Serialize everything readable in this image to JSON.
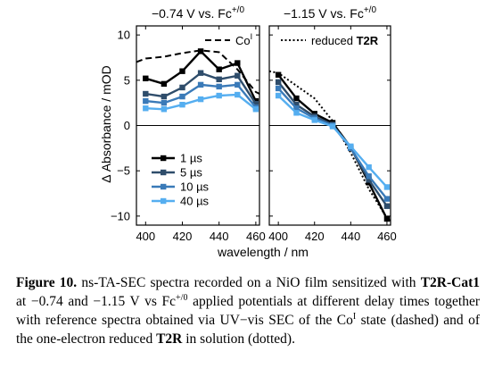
{
  "chart_data": [
    {
      "type": "line",
      "title_parts": [
        "−0.74 V vs. Fc",
        "+/0"
      ],
      "xlabel": "wavelength / nm",
      "ylabel": "Δ Absorbance / mOD",
      "xlim": [
        395,
        462
      ],
      "ylim": [
        -11,
        11
      ],
      "xticks": [
        400,
        420,
        440,
        460
      ],
      "yticks": [
        10,
        5,
        0,
        -5,
        -10
      ],
      "zero_line": true,
      "legend": [
        {
          "label": "1 µs",
          "color": "#000000"
        },
        {
          "label": "5 µs",
          "color": "#2f4d6b"
        },
        {
          "label": "10 µs",
          "color": "#3a7ab8"
        },
        {
          "label": "40 µs",
          "color": "#55aef0"
        }
      ],
      "legend_position": "bottom-left",
      "reference_legend": {
        "label_parts": [
          "Co",
          "I"
        ],
        "style": "dashed",
        "position": "top-right"
      },
      "x": [
        400,
        410,
        420,
        430,
        440,
        450,
        460
      ],
      "series": [
        {
          "name": "1 µs",
          "color": "#000000",
          "values": [
            5.2,
            4.6,
            6.0,
            8.2,
            6.2,
            6.9,
            2.7
          ]
        },
        {
          "name": "5 µs",
          "color": "#2f4d6b",
          "values": [
            3.5,
            3.2,
            4.2,
            5.8,
            5.1,
            5.5,
            2.4
          ]
        },
        {
          "name": "10 µs",
          "color": "#3a7ab8",
          "values": [
            2.7,
            2.5,
            3.2,
            4.5,
            4.3,
            4.5,
            2.0
          ]
        },
        {
          "name": "40 µs",
          "color": "#55aef0",
          "values": [
            1.9,
            1.8,
            2.3,
            2.9,
            3.3,
            3.4,
            1.8
          ]
        }
      ],
      "reference": {
        "name": "Coᴵ",
        "style": "dashed",
        "color": "#000000",
        "x": [
          395,
          400,
          410,
          420,
          430,
          440,
          450,
          460,
          462
        ],
        "values": [
          7.0,
          7.4,
          7.6,
          8.0,
          8.3,
          8.1,
          6.2,
          3.7,
          3.5
        ]
      }
    },
    {
      "type": "line",
      "title_parts": [
        "−1.15 V vs. Fc",
        "+/0"
      ],
      "xlabel": "wavelength / nm",
      "ylabel": "Δ Absorbance / mOD",
      "xlim": [
        395,
        462
      ],
      "ylim": [
        -11,
        11
      ],
      "xticks": [
        400,
        420,
        440,
        460
      ],
      "yticks": [
        10,
        5,
        0,
        -5,
        -10
      ],
      "zero_line": true,
      "reference_legend": {
        "label_parts": [
          "reduced ",
          "T2R"
        ],
        "style": "dotted",
        "position": "top-right"
      },
      "x": [
        400,
        410,
        420,
        430,
        440,
        450,
        460
      ],
      "series": [
        {
          "name": "1 µs",
          "color": "#000000",
          "values": [
            5.6,
            3.0,
            1.3,
            0.3,
            -2.4,
            -6.3,
            -10.3
          ]
        },
        {
          "name": "5 µs",
          "color": "#2f4d6b",
          "values": [
            4.8,
            2.3,
            1.0,
            0.1,
            -2.5,
            -6.0,
            -8.9
          ]
        },
        {
          "name": "10 µs",
          "color": "#3a7ab8",
          "values": [
            4.1,
            1.9,
            0.8,
            0.0,
            -2.5,
            -5.6,
            -8.1
          ]
        },
        {
          "name": "40 µs",
          "color": "#55aef0",
          "values": [
            3.3,
            1.4,
            0.6,
            -0.1,
            -2.3,
            -4.6,
            -6.8
          ]
        }
      ],
      "reference": {
        "name": "reduced T2R",
        "style": "dotted",
        "color": "#000000",
        "x": [
          395,
          400,
          410,
          420,
          430,
          440,
          450,
          460,
          462
        ],
        "values": [
          6.0,
          5.8,
          4.4,
          3.0,
          0.5,
          -3.0,
          -7.0,
          -10.2,
          -10.5
        ]
      }
    }
  ],
  "caption": {
    "label": "Figure 10.",
    "t1": " ns-TA-SEC spectra recorded on a NiO film sensitized with ",
    "b1": "T2R-Cat1",
    "t2": " at −0.74 and −1.15 V vs Fc",
    "sup1": "+/0",
    "t3": " applied potentials at different delay times together with reference spectra obtained via UV−vis SEC of the Co",
    "sup2": "I",
    "t4": " state (dashed) and of the one-electron reduced ",
    "b2": "T2R",
    "t5": " in solution (dotted)."
  }
}
